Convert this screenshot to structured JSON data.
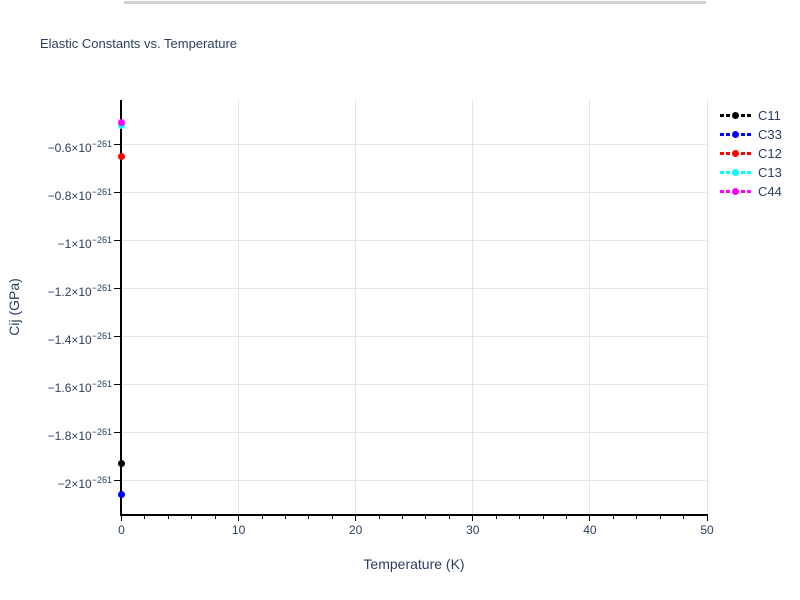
{
  "chart": {
    "title": "Elastic Constants vs. Temperature",
    "xaxis": {
      "title": "Temperature (K)",
      "tick_labels": [
        "0",
        "10",
        "20",
        "30",
        "40",
        "50"
      ]
    },
    "yaxis": {
      "title": "Cij (GPa)",
      "ticks": [
        {
          "mantissa": "−0.6×10",
          "exp": "−261",
          "value": -6e-262
        },
        {
          "mantissa": "−0.8×10",
          "exp": "−261",
          "value": -8e-262
        },
        {
          "mantissa": "−1×10",
          "exp": "−261",
          "value": -1e-261
        },
        {
          "mantissa": "−1.2×10",
          "exp": "−261",
          "value": -1.2e-261
        },
        {
          "mantissa": "−1.4×10",
          "exp": "−261",
          "value": -1.4e-261
        },
        {
          "mantissa": "−1.6×10",
          "exp": "−261",
          "value": -1.6e-261
        },
        {
          "mantissa": "−1.8×10",
          "exp": "−261",
          "value": -1.8e-261
        },
        {
          "mantissa": "−2×10",
          "exp": "−261",
          "value": -2e-261
        }
      ]
    },
    "legend": [
      {
        "label": "C11",
        "color": "#000000"
      },
      {
        "label": "C33",
        "color": "#0000ff"
      },
      {
        "label": "C12",
        "color": "#ff0000"
      },
      {
        "label": "C13",
        "color": "#00ffff"
      },
      {
        "label": "C44",
        "color": "#ff00ff"
      }
    ],
    "colors": {
      "text": "#2a3f5f",
      "grid": "#e6e6e6",
      "axis": "#000000",
      "divider": "#d2d2d2"
    }
  },
  "chart_data": {
    "type": "scatter",
    "title": "Elastic Constants vs. Temperature",
    "xlabel": "Temperature (K)",
    "ylabel": "Cij (GPa)",
    "xlim": [
      0,
      50
    ],
    "ylim": [
      -2.144e-261,
      -4.15e-262
    ],
    "xticks": [
      0,
      10,
      20,
      30,
      40,
      50
    ],
    "x_minor_tick_step": 2,
    "grid": true,
    "legend_position": "top-right-outside",
    "line_style": "dashed",
    "series": [
      {
        "name": "C11",
        "color": "#000000",
        "x": [
          0
        ],
        "y": [
          -1.93e-261
        ]
      },
      {
        "name": "C33",
        "color": "#0000ff",
        "x": [
          0
        ],
        "y": [
          -2.06e-261
        ]
      },
      {
        "name": "C12",
        "color": "#ff0000",
        "x": [
          0
        ],
        "y": [
          -6.5e-262
        ]
      },
      {
        "name": "C13",
        "color": "#00ffff",
        "x": [
          0
        ],
        "y": [
          -5.2e-262
        ]
      },
      {
        "name": "C44",
        "color": "#ff00ff",
        "x": [
          0
        ],
        "y": [
          -5.1e-262
        ]
      }
    ]
  }
}
